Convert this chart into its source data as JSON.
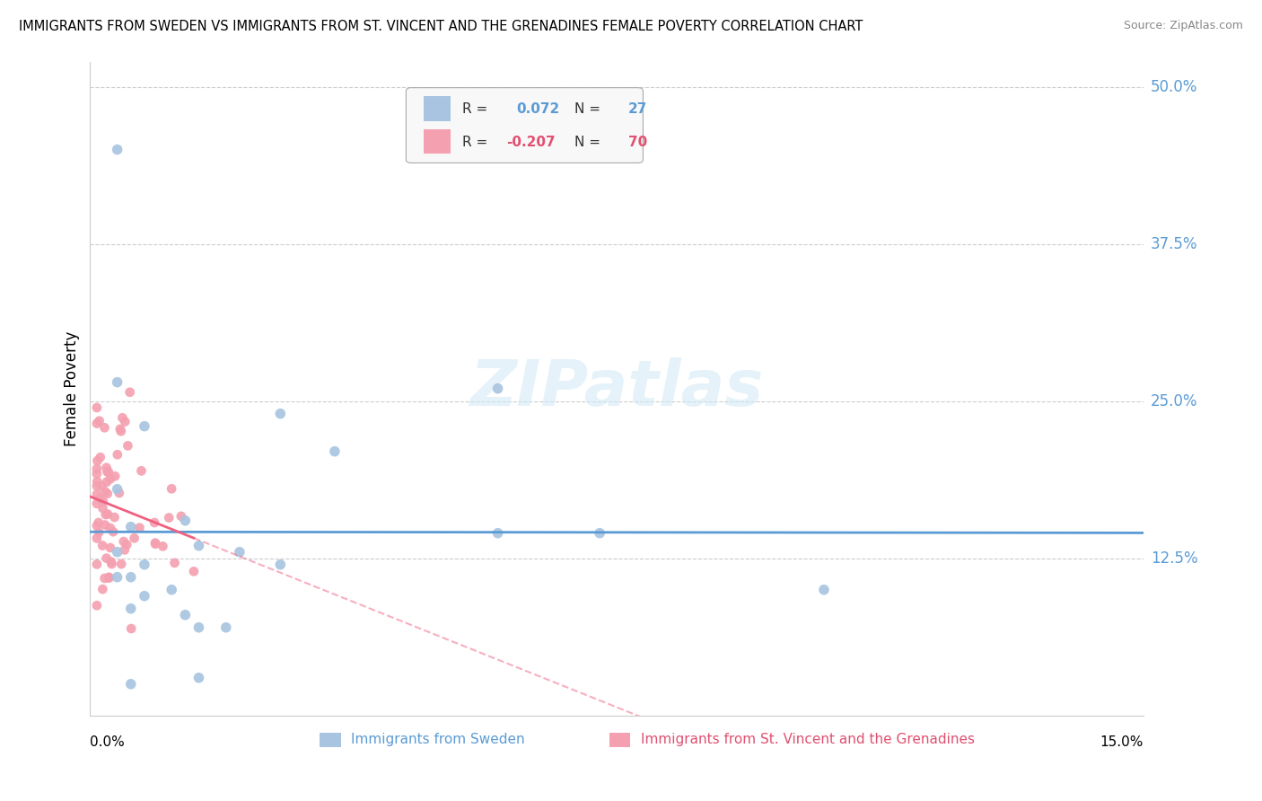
{
  "title": "IMMIGRANTS FROM SWEDEN VS IMMIGRANTS FROM ST. VINCENT AND THE GRENADINES FEMALE POVERTY CORRELATION CHART",
  "source": "Source: ZipAtlas.com",
  "ylabel": "Female Poverty",
  "xlim": [
    0.0,
    0.155
  ],
  "ylim": [
    0.0,
    0.52
  ],
  "legend_r_sweden": "0.072",
  "legend_n_sweden": "27",
  "legend_r_svg": "-0.207",
  "legend_n_svg": "70",
  "color_sweden": "#a8c4e0",
  "color_svg": "#f4a0b0",
  "color_sweden_line": "#5b9bd5",
  "color_svg_line": "#f06080",
  "right_yticks": [
    0.125,
    0.25,
    0.375,
    0.5
  ],
  "right_yticklabels": [
    "12.5%",
    "25.0%",
    "37.5%",
    "50.0%"
  ],
  "grid_yticks": [
    0.125,
    0.25,
    0.375,
    0.5
  ],
  "sw_x": [
    0.022,
    0.028,
    0.014,
    0.016,
    0.008,
    0.004,
    0.006,
    0.012,
    0.008,
    0.006,
    0.014,
    0.02,
    0.016,
    0.028,
    0.036,
    0.06,
    0.06,
    0.075,
    0.016,
    0.006,
    0.004,
    0.006,
    0.008,
    0.004,
    0.108,
    0.004,
    0.004
  ],
  "sw_y": [
    0.13,
    0.12,
    0.155,
    0.135,
    0.12,
    0.11,
    0.11,
    0.1,
    0.095,
    0.085,
    0.08,
    0.07,
    0.07,
    0.24,
    0.21,
    0.145,
    0.26,
    0.145,
    0.03,
    0.025,
    0.45,
    0.15,
    0.23,
    0.13,
    0.1,
    0.265,
    0.18
  ]
}
